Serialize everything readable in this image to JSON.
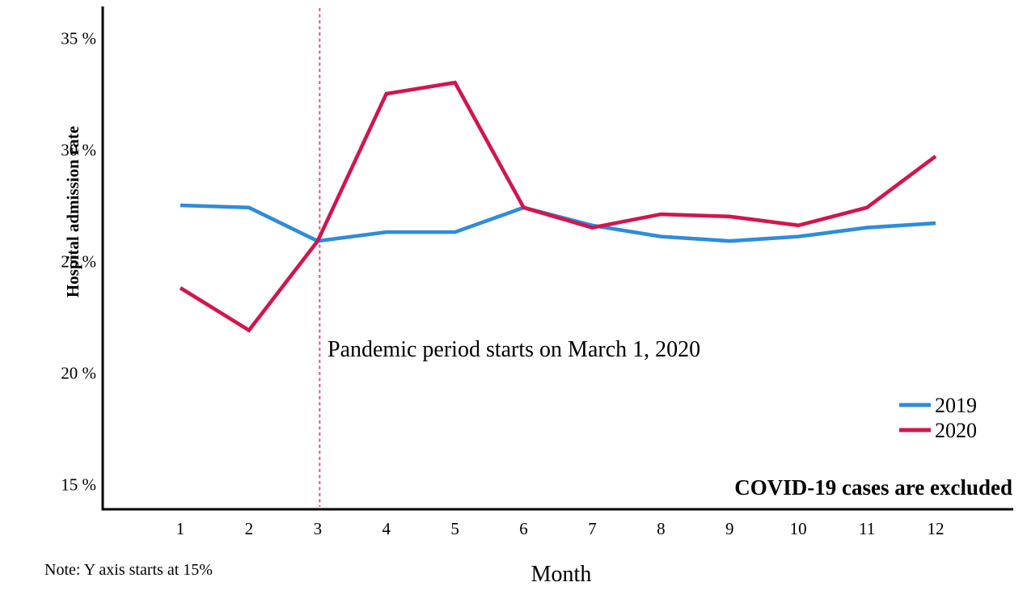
{
  "figure": {
    "exclusion_note": "COVID-19 cases are excluded",
    "baseline_note": "Note: Y axis starts at 15%"
  },
  "chart_data": {
    "type": "line",
    "title": "",
    "xlabel": "Month",
    "ylabel": "Hospital admission rate",
    "categories": [
      1,
      2,
      3,
      4,
      5,
      6,
      7,
      8,
      9,
      10,
      11,
      12
    ],
    "x_tick_labels": [
      "1",
      "2",
      "3",
      "4",
      "5",
      "6",
      "7",
      "8",
      "9",
      "10",
      "11",
      "12"
    ],
    "y_tick_values": [
      35,
      30,
      25,
      20,
      15
    ],
    "y_tick_labels": [
      "35 %",
      "30 %",
      "25 %",
      "20 %",
      "15 %"
    ],
    "ylim": [
      14,
      36.5
    ],
    "grid": false,
    "legend_position": "right-middle",
    "series": [
      {
        "name": "2019",
        "color": "#2e8cdb",
        "values": [
          27.5,
          27.4,
          25.9,
          26.3,
          26.3,
          27.4,
          26.6,
          26.1,
          25.9,
          26.1,
          26.5,
          26.7
        ]
      },
      {
        "name": "2020",
        "color": "#d2154d",
        "values": [
          23.8,
          21.9,
          25.9,
          32.5,
          33.0,
          27.4,
          26.5,
          27.1,
          27.0,
          26.6,
          27.4,
          29.7
        ]
      }
    ],
    "reference_line": {
      "x": 3,
      "orientation": "vertical",
      "style": "dashed",
      "color": "#e05878",
      "label": "Pandemic period starts on March 1, 2020"
    }
  }
}
